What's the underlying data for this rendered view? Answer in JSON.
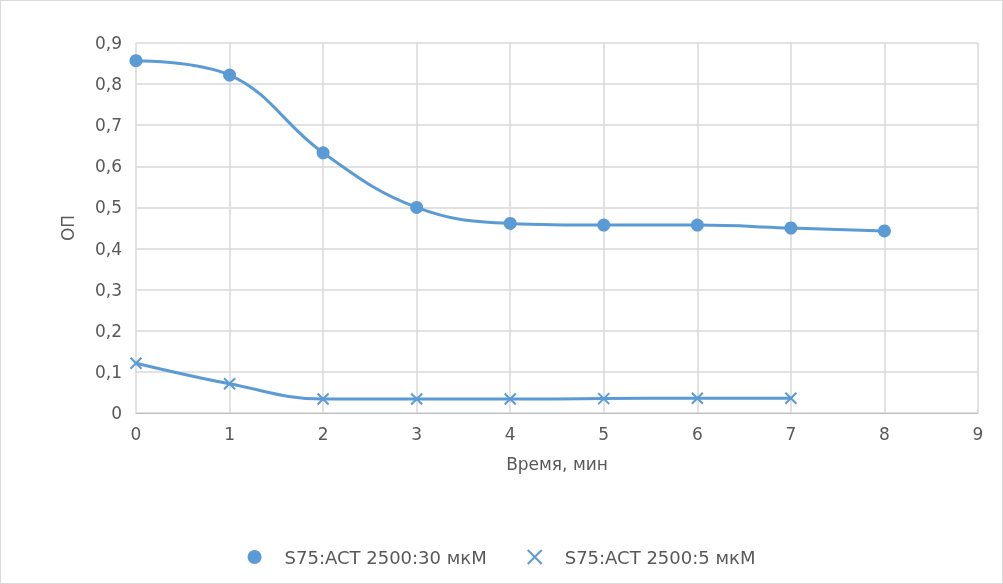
{
  "chart_data": {
    "type": "line",
    "xlabel": "Время, мин",
    "ylabel": "ОП",
    "x": [
      0,
      1,
      2,
      3,
      4,
      5,
      6,
      7,
      8
    ],
    "series": [
      {
        "name": "S75:ACT 2500:30 мкМ",
        "color": "#5b9bd5",
        "marker": "circle",
        "values": [
          0.857,
          0.822,
          0.633,
          0.5,
          0.461,
          0.457,
          0.457,
          0.45,
          0.443
        ]
      },
      {
        "name": "S75:ACT 2500:5 мкМ",
        "color": "#5b9bd5",
        "marker": "cross",
        "x": [
          0,
          1,
          2,
          3,
          4,
          5,
          6,
          7
        ],
        "values": [
          0.121,
          0.071,
          0.034,
          0.034,
          0.034,
          0.035,
          0.036,
          0.036
        ]
      }
    ],
    "xlim": [
      0,
      9
    ],
    "xticks": [
      0,
      1,
      2,
      3,
      4,
      5,
      6,
      7,
      8,
      9
    ],
    "ylim": [
      0,
      0.9
    ],
    "yticks": [
      0,
      {
        "value": 0.1,
        "label": "0,1"
      },
      {
        "value": 0.2,
        "label": "0,2"
      },
      {
        "value": 0.3,
        "label": "0,3"
      },
      {
        "value": 0.4,
        "label": "0,4"
      },
      {
        "value": 0.5,
        "label": "0,5"
      },
      {
        "value": 0.6,
        "label": "0,6"
      },
      {
        "value": 0.7,
        "label": "0,7"
      },
      {
        "value": 0.8,
        "label": "0,8"
      },
      {
        "value": 0.9,
        "label": "0,9"
      }
    ],
    "grid": true,
    "legend": "bottom",
    "line_style": "solid"
  }
}
